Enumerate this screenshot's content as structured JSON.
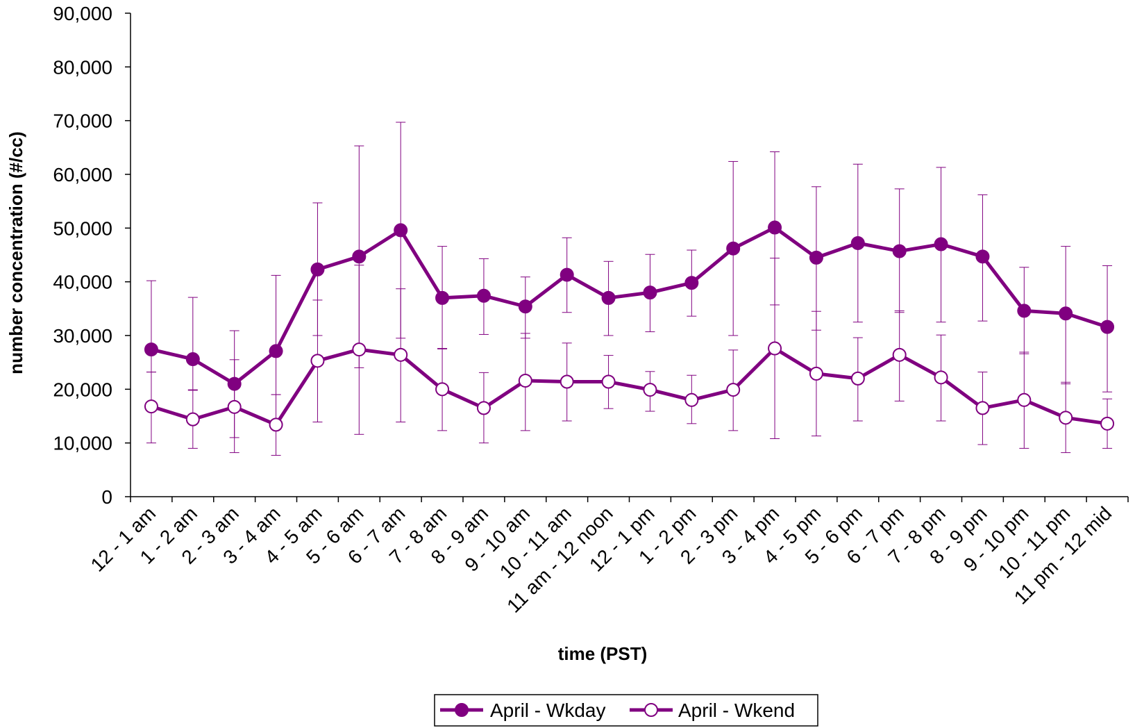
{
  "chart_data": {
    "type": "line",
    "xlabel": "time (PST)",
    "ylabel": "number concentration (#/cc)",
    "ylim": [
      0,
      90000
    ],
    "yticks": [
      0,
      10000,
      20000,
      30000,
      40000,
      50000,
      60000,
      70000,
      80000,
      90000
    ],
    "ytick_labels": [
      "0",
      "10,000",
      "20,000",
      "30,000",
      "40,000",
      "50,000",
      "60,000",
      "70,000",
      "80,000",
      "90,000"
    ],
    "grid": false,
    "legend_position": "bottom-center",
    "categories": [
      "12 - 1 am",
      "1 - 2 am",
      "2 - 3 am",
      "3 - 4 am",
      "4 - 5 am",
      "5 - 6 am",
      "6 - 7 am",
      "7 - 8 am",
      "8 - 9 am",
      "9 - 10 am",
      "10 - 11 am",
      "11 am - 12 noon",
      "12 - 1 pm",
      "1 - 2 pm",
      "2 - 3 pm",
      "3 - 4 pm",
      "4 - 5 pm",
      "5 - 6 pm",
      "6 - 7 pm",
      "7 - 8 pm",
      "8 - 9 pm",
      "9 - 10 pm",
      "10 - 11 pm",
      "11 pm - 12 mid"
    ],
    "series": [
      {
        "name": "April - Wkday",
        "color": "#800080",
        "marker": "filled-circle",
        "values": [
          27400,
          25600,
          21000,
          27100,
          42300,
          44700,
          49600,
          37000,
          37400,
          35400,
          41300,
          37000,
          38000,
          39800,
          46200,
          50100,
          44500,
          47200,
          45700,
          47000,
          44700,
          34600,
          34100,
          31600
        ],
        "error_low": [
          23200,
          19900,
          11000,
          19000,
          30000,
          24000,
          29500,
          27600,
          30200,
          29500,
          34300,
          30000,
          30700,
          33600,
          30000,
          35700,
          31000,
          32500,
          34300,
          32500,
          32700,
          26600,
          21000,
          19500
        ],
        "error_high": [
          40200,
          37100,
          30900,
          41200,
          54700,
          65300,
          69700,
          46600,
          44300,
          40900,
          48200,
          43800,
          45100,
          45900,
          62400,
          64200,
          57700,
          61900,
          57300,
          61300,
          56200,
          42700,
          46600,
          43000
        ]
      },
      {
        "name": "April - Wkend",
        "color": "#800080",
        "marker": "open-circle",
        "values": [
          16800,
          14400,
          16700,
          13400,
          25300,
          27400,
          26400,
          20000,
          16500,
          21600,
          21400,
          21400,
          19900,
          18000,
          19900,
          27600,
          22900,
          22000,
          26400,
          22200,
          16500,
          18000,
          14700,
          13600
        ],
        "error_low": [
          10000,
          9000,
          8200,
          7700,
          13900,
          11600,
          13900,
          12300,
          10000,
          12300,
          14100,
          16400,
          15900,
          13600,
          12300,
          10800,
          11300,
          14100,
          17800,
          14100,
          9700,
          9000,
          8200,
          9000
        ],
        "error_high": [
          23200,
          19800,
          25500,
          19000,
          36600,
          43100,
          38700,
          27500,
          23100,
          30400,
          28600,
          26300,
          23300,
          22600,
          27300,
          44400,
          34500,
          29600,
          34600,
          30100,
          23200,
          26900,
          21300,
          18200
        ]
      }
    ]
  }
}
